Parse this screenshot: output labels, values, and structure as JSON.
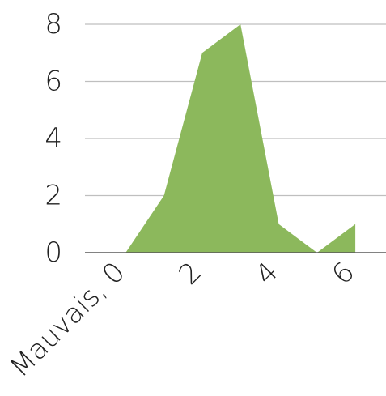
{
  "chart_data": {
    "type": "area",
    "x": [
      0,
      1,
      2,
      3,
      4,
      5,
      6,
      7
    ],
    "x_tick_labels": [
      {
        "x": 0,
        "label": "Mauvais, 0"
      },
      {
        "x": 2,
        "label": "2"
      },
      {
        "x": 4,
        "label": "4"
      },
      {
        "x": 6,
        "label": "6"
      }
    ],
    "series": [
      {
        "values": [
          0,
          0,
          2,
          7,
          8,
          1,
          0,
          1
        ],
        "color": "#8cb85c"
      }
    ],
    "y_ticks": [
      "0",
      "2",
      "4",
      "6",
      "8"
    ],
    "ylim": [
      0,
      8
    ],
    "grid": true,
    "gridline_color": "#bfbfbf",
    "axis_color": "#595959"
  }
}
